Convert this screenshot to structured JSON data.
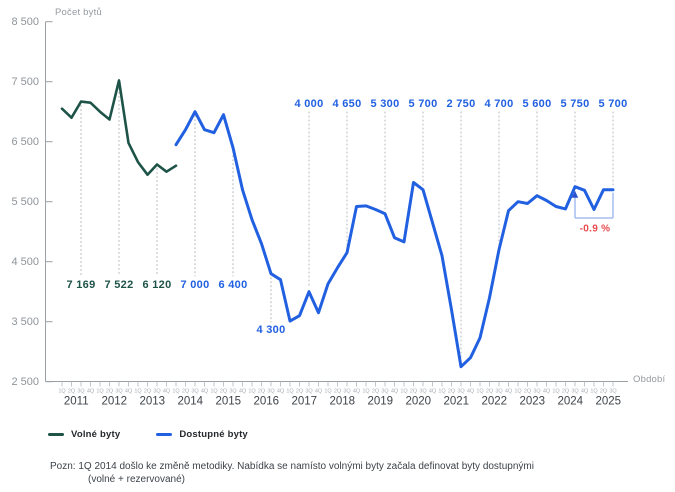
{
  "header": {
    "y_axis_title": "Počet bytů",
    "x_axis_title": "Období"
  },
  "chart_data": {
    "type": "line",
    "title": "",
    "ylabel": "Počet bytů",
    "xlabel": "Období",
    "ylim": [
      2500,
      8500
    ],
    "yticks": [
      8500,
      7500,
      6500,
      5500,
      4500,
      3500,
      2500
    ],
    "ytick_labels": [
      "8 500",
      "7 500",
      "6 500",
      "5 500",
      "4 500",
      "3 500",
      "2 500"
    ],
    "quarter_cycle": [
      "1Q",
      "2Q",
      "3Q",
      "4Q"
    ],
    "n_quarters": 59,
    "x_start": "1Q 2011",
    "x_end": "3Q 2025",
    "years": [
      2011,
      2012,
      2013,
      2014,
      2015,
      2016,
      2017,
      2018,
      2019,
      2020,
      2021,
      2022,
      2023,
      2024,
      2025
    ],
    "grid": "off",
    "legend_position": "bottom-left",
    "series": [
      {
        "name": "Volné byty",
        "color": "#1e5348",
        "start_index": 0,
        "values": [
          7050,
          6900,
          7169,
          7150,
          7000,
          6870,
          7522,
          6480,
          6160,
          5950,
          6120,
          6000,
          6100
        ]
      },
      {
        "name": "Dostupné byty",
        "color": "#2160e0",
        "start_index": 12,
        "values": [
          6450,
          6700,
          7000,
          6700,
          6650,
          6950,
          6400,
          5700,
          5200,
          4800,
          4300,
          4200,
          3510,
          3600,
          4000,
          3650,
          4130,
          4400,
          4650,
          5420,
          5430,
          5370,
          5300,
          4900,
          4830,
          5820,
          5700,
          5150,
          4600,
          3700,
          2750,
          2900,
          3230,
          3900,
          4700,
          5350,
          5500,
          5470,
          5600,
          5520,
          5420,
          5380,
          5750,
          5690,
          5370,
          5700,
          5700
        ]
      }
    ],
    "annotations": [
      {
        "index": 2,
        "series": 0,
        "row": "mid",
        "label": "7 169"
      },
      {
        "index": 6,
        "series": 0,
        "row": "mid",
        "label": "7 522"
      },
      {
        "index": 10,
        "series": 0,
        "row": "mid",
        "label": "6 120"
      },
      {
        "index": 14,
        "series": 1,
        "row": "mid",
        "label": "7 000"
      },
      {
        "index": 18,
        "series": 1,
        "row": "mid",
        "label": "6 400"
      },
      {
        "index": 22,
        "series": 1,
        "row": "low",
        "label": "4 300"
      },
      {
        "index": 26,
        "series": 1,
        "row": "top",
        "label": "4 000"
      },
      {
        "index": 30,
        "series": 1,
        "row": "top",
        "label": "4 650"
      },
      {
        "index": 34,
        "series": 1,
        "row": "top",
        "label": "5 300"
      },
      {
        "index": 38,
        "series": 1,
        "row": "top",
        "label": "5 700"
      },
      {
        "index": 42,
        "series": 1,
        "row": "top",
        "label": "2 750"
      },
      {
        "index": 46,
        "series": 1,
        "row": "top",
        "label": "4 700"
      },
      {
        "index": 50,
        "series": 1,
        "row": "top",
        "label": "5 600"
      },
      {
        "index": 54,
        "series": 1,
        "row": "top",
        "label": "5 750"
      },
      {
        "index": 58,
        "series": 1,
        "row": "top",
        "label": "5 700"
      }
    ],
    "delta": {
      "from_index": 54,
      "to_index": 58,
      "label": "-0.9 %",
      "color": "#e8494d",
      "bracket_color": "#a6bdf0",
      "arrow_color": "#2b52cc"
    }
  },
  "legend": {
    "items": [
      {
        "label": "Volné byty",
        "color": "#1e5348"
      },
      {
        "label": "Dostupné byty",
        "color": "#2160e0"
      }
    ]
  },
  "footnote": {
    "line1": "Pozn: 1Q 2014 došlo ke změně metodiky. Nabídka se namísto volnými byty začala definovat byty dostupnými",
    "line2": "(volné + rezervované)"
  },
  "colors": {
    "axis_text": "#8f959b",
    "quarter_text": "#a8adb3",
    "year_text": "#3d4349",
    "dotted_guide": "#b9bcc0",
    "delta_text": "#e8494d"
  }
}
